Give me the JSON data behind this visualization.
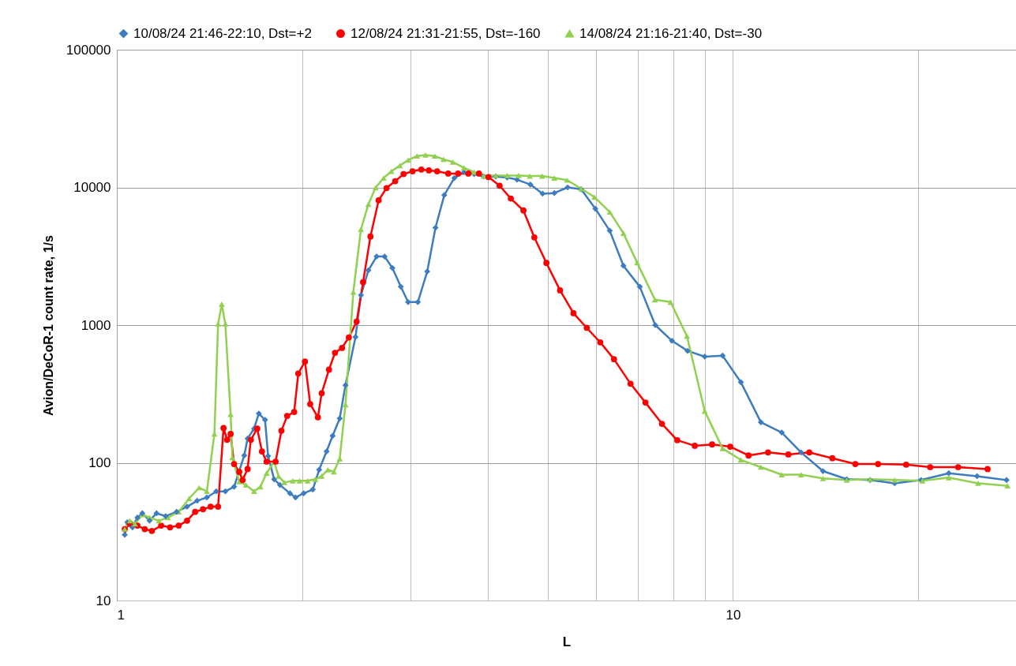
{
  "chart_data": {
    "type": "line",
    "xlabel": "L",
    "ylabel": "Avion/DeCoR-1 count rate, 1/s",
    "log": "xy",
    "grid": true,
    "legend": "top",
    "xlim": [
      1,
      28.8
    ],
    "xticks": [
      1,
      {
        "value": 2,
        "label": null
      },
      {
        "value": 3,
        "label": null
      },
      {
        "value": 4,
        "label": null
      },
      {
        "value": 5,
        "label": null
      },
      {
        "value": 6,
        "label": null
      },
      {
        "value": 7,
        "label": null
      },
      {
        "value": 8,
        "label": null
      },
      {
        "value": 9,
        "label": null
      },
      10,
      {
        "value": 20,
        "label": null
      }
    ],
    "ylim": [
      10,
      100000
    ],
    "yticks": [
      10,
      100,
      1000,
      10000,
      100000
    ],
    "series": [
      {
        "name": "10/08/24 21:46-22:10, Dst=+2",
        "color": "#3e7cc0",
        "marker": "diamond",
        "x": [
          1.03,
          1.04,
          1.06,
          1.08,
          1.1,
          1.13,
          1.16,
          1.2,
          1.25,
          1.3,
          1.35,
          1.4,
          1.45,
          1.5,
          1.55,
          1.61,
          1.63,
          1.67,
          1.7,
          1.74,
          1.76,
          1.8,
          1.84,
          1.91,
          1.95,
          2.01,
          2.08,
          2.13,
          2.19,
          2.24,
          2.3,
          2.35,
          2.44,
          2.49,
          2.56,
          2.64,
          2.72,
          2.8,
          2.89,
          2.97,
          3.08,
          3.19,
          3.29,
          3.4,
          3.53,
          3.66,
          3.8,
          3.94,
          4.12,
          4.3,
          4.46,
          4.69,
          4.91,
          5.13,
          5.39,
          5.67,
          5.98,
          6.31,
          6.64,
          7.06,
          7.48,
          7.96,
          8.44,
          9.0,
          9.62,
          10.3,
          11.1,
          12.0,
          12.9,
          14.0,
          15.3,
          16.7,
          18.3,
          20.2,
          22.4,
          24.9,
          27.8
        ],
        "values": [
          30,
          37,
          34,
          40,
          43,
          38,
          43,
          41,
          44,
          48,
          53,
          56,
          62,
          62,
          67,
          113,
          150,
          177,
          228,
          205,
          112,
          76,
          69,
          60,
          56,
          60,
          64,
          89,
          121,
          157,
          210,
          366,
          820,
          1650,
          2500,
          3150,
          3150,
          2600,
          1900,
          1470,
          1470,
          2450,
          5100,
          8800,
          11700,
          12900,
          12500,
          12000,
          12000,
          11800,
          11400,
          10500,
          9000,
          9100,
          10000,
          9700,
          7000,
          4850,
          2700,
          1900,
          1000,
          770,
          650,
          590,
          600,
          385,
          197,
          166,
          119,
          87,
          76,
          75,
          71,
          75,
          84,
          80,
          75
        ]
      },
      {
        "name": "12/08/24 21:31-21:55, Dst=-160",
        "color": "#ff0000",
        "marker": "circle",
        "x": [
          1.03,
          1.05,
          1.08,
          1.11,
          1.14,
          1.18,
          1.22,
          1.26,
          1.3,
          1.34,
          1.38,
          1.42,
          1.46,
          1.49,
          1.51,
          1.53,
          1.55,
          1.58,
          1.6,
          1.63,
          1.65,
          1.69,
          1.72,
          1.75,
          1.81,
          1.85,
          1.89,
          1.94,
          1.97,
          2.02,
          2.06,
          2.12,
          2.15,
          2.21,
          2.26,
          2.32,
          2.38,
          2.45,
          2.51,
          2.58,
          2.66,
          2.74,
          2.83,
          2.92,
          3.02,
          3.12,
          3.21,
          3.31,
          3.45,
          3.58,
          3.72,
          3.87,
          4.01,
          4.18,
          4.36,
          4.57,
          4.76,
          4.98,
          5.24,
          5.51,
          5.79,
          6.09,
          6.41,
          6.82,
          7.21,
          7.67,
          8.12,
          8.67,
          9.25,
          9.9,
          10.6,
          11.4,
          12.3,
          13.3,
          14.5,
          15.8,
          17.2,
          19.1,
          20.9,
          23.2,
          25.9
        ],
        "values": [
          33,
          36,
          35,
          33,
          32,
          35,
          34,
          35,
          38,
          44,
          46,
          48,
          48,
          179,
          147,
          162,
          98,
          86,
          75,
          90,
          147,
          177,
          121,
          102,
          102,
          171,
          219,
          234,
          445,
          544,
          267,
          214,
          320,
          475,
          630,
          683,
          815,
          1060,
          2050,
          4400,
          8050,
          9900,
          11100,
          12500,
          13100,
          13500,
          13300,
          13100,
          12600,
          12600,
          12600,
          12600,
          11900,
          10300,
          8300,
          6800,
          4340,
          2830,
          1790,
          1220,
          955,
          750,
          566,
          375,
          274,
          192,
          146,
          133,
          136,
          131,
          113,
          119,
          115,
          119,
          108,
          98,
          98,
          97,
          93,
          93,
          90
        ]
      },
      {
        "name": "14/08/24 21:16-21:40, Dst=-30",
        "color": "#92d050",
        "marker": "triangle",
        "x": [
          1.03,
          1.05,
          1.07,
          1.1,
          1.13,
          1.17,
          1.21,
          1.26,
          1.31,
          1.36,
          1.4,
          1.44,
          1.46,
          1.48,
          1.5,
          1.53,
          1.54,
          1.58,
          1.62,
          1.67,
          1.71,
          1.75,
          1.8,
          1.83,
          1.87,
          1.93,
          1.98,
          2.04,
          2.1,
          2.15,
          2.2,
          2.25,
          2.3,
          2.35,
          2.42,
          2.49,
          2.56,
          2.63,
          2.71,
          2.79,
          2.88,
          2.97,
          3.07,
          3.17,
          3.28,
          3.39,
          3.51,
          3.66,
          3.8,
          3.94,
          4.12,
          4.3,
          4.49,
          4.68,
          4.9,
          5.13,
          5.38,
          5.67,
          5.96,
          6.31,
          6.64,
          6.99,
          7.47,
          7.92,
          8.42,
          9.0,
          9.62,
          10.3,
          11.1,
          12.0,
          12.9,
          14.0,
          15.3,
          16.7,
          18.3,
          20.3,
          22.4,
          25.0,
          27.9
        ],
        "values": [
          33,
          38,
          36,
          42,
          40,
          38,
          40,
          44,
          55,
          66,
          62,
          162,
          1020,
          1420,
          1020,
          225,
          109,
          73,
          69,
          62,
          67,
          84,
          102,
          80,
          72,
          74,
          74,
          74,
          76,
          80,
          89,
          86,
          107,
          264,
          1740,
          4960,
          7540,
          9960,
          11700,
          13100,
          14400,
          15800,
          16900,
          17200,
          16900,
          16000,
          15300,
          13900,
          12900,
          12100,
          12200,
          12200,
          12200,
          12100,
          12100,
          11700,
          11300,
          9800,
          8500,
          6630,
          4650,
          2840,
          1530,
          1470,
          832,
          237,
          127,
          105,
          93,
          82,
          82,
          77,
          75,
          76,
          75,
          74,
          78,
          71,
          68
        ]
      }
    ]
  }
}
